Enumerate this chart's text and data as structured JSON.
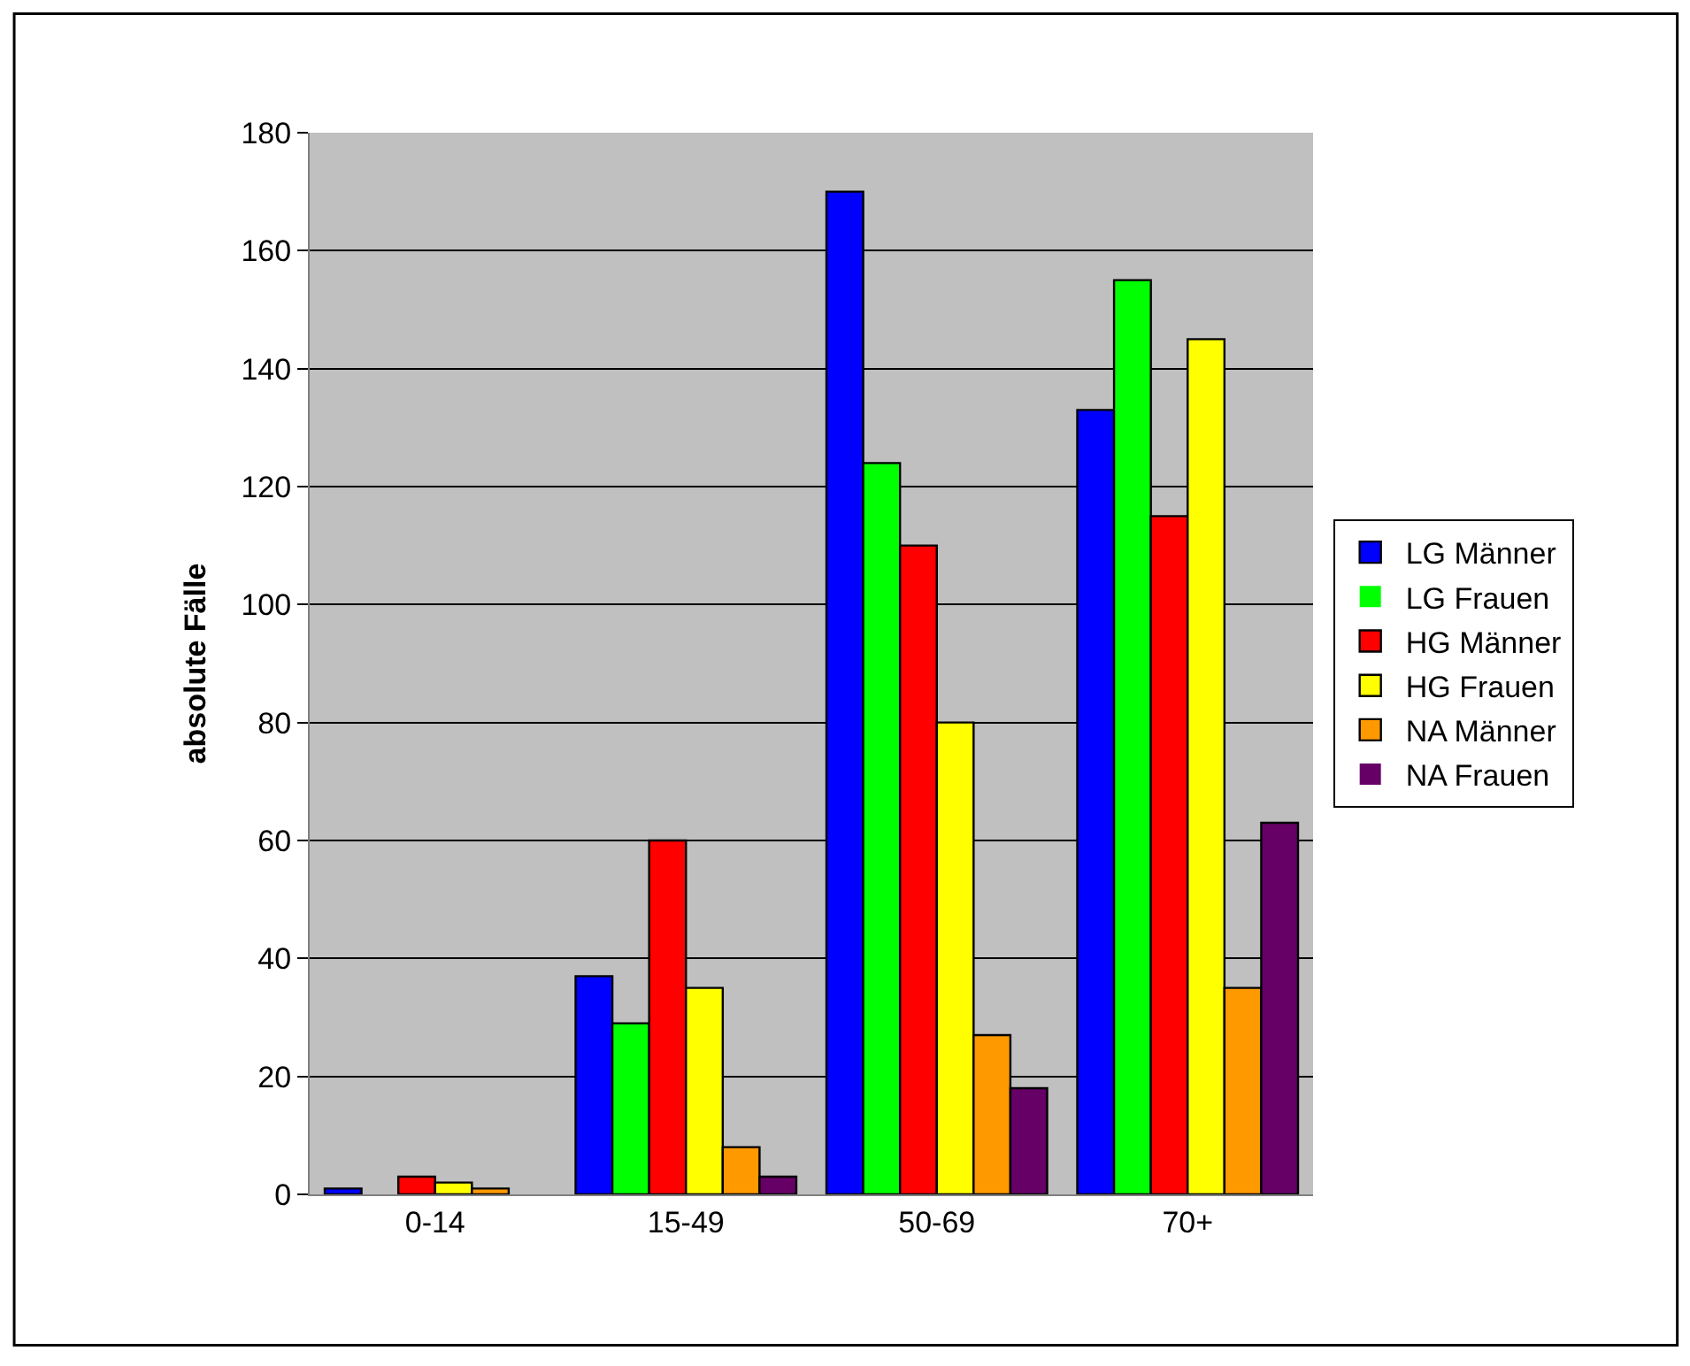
{
  "chart_data": {
    "type": "bar",
    "ylabel": "absolute Fälle",
    "categories": [
      "0-14",
      "15-49",
      "50-69",
      "70+"
    ],
    "series": [
      {
        "name": "LG Männer",
        "color": "#0000ff",
        "values": [
          1,
          37,
          170,
          133
        ]
      },
      {
        "name": "LG Frauen",
        "color": "#00ff00",
        "values": [
          0,
          29,
          124,
          155
        ]
      },
      {
        "name": "HG Männer",
        "color": "#ff0000",
        "values": [
          3,
          60,
          110,
          115
        ]
      },
      {
        "name": "HG Frauen",
        "color": "#ffff00",
        "values": [
          2,
          35,
          80,
          145
        ]
      },
      {
        "name": "NA Männer",
        "color": "#ff9900",
        "values": [
          1,
          8,
          27,
          35
        ]
      },
      {
        "name": "NA Frauen",
        "color": "#660066",
        "values": [
          0,
          3,
          18,
          63
        ]
      }
    ],
    "ylim": [
      0,
      180
    ],
    "yticks": [
      0,
      20,
      40,
      60,
      80,
      100,
      120,
      140,
      160,
      180
    ],
    "grid": "y",
    "legend": "right"
  }
}
